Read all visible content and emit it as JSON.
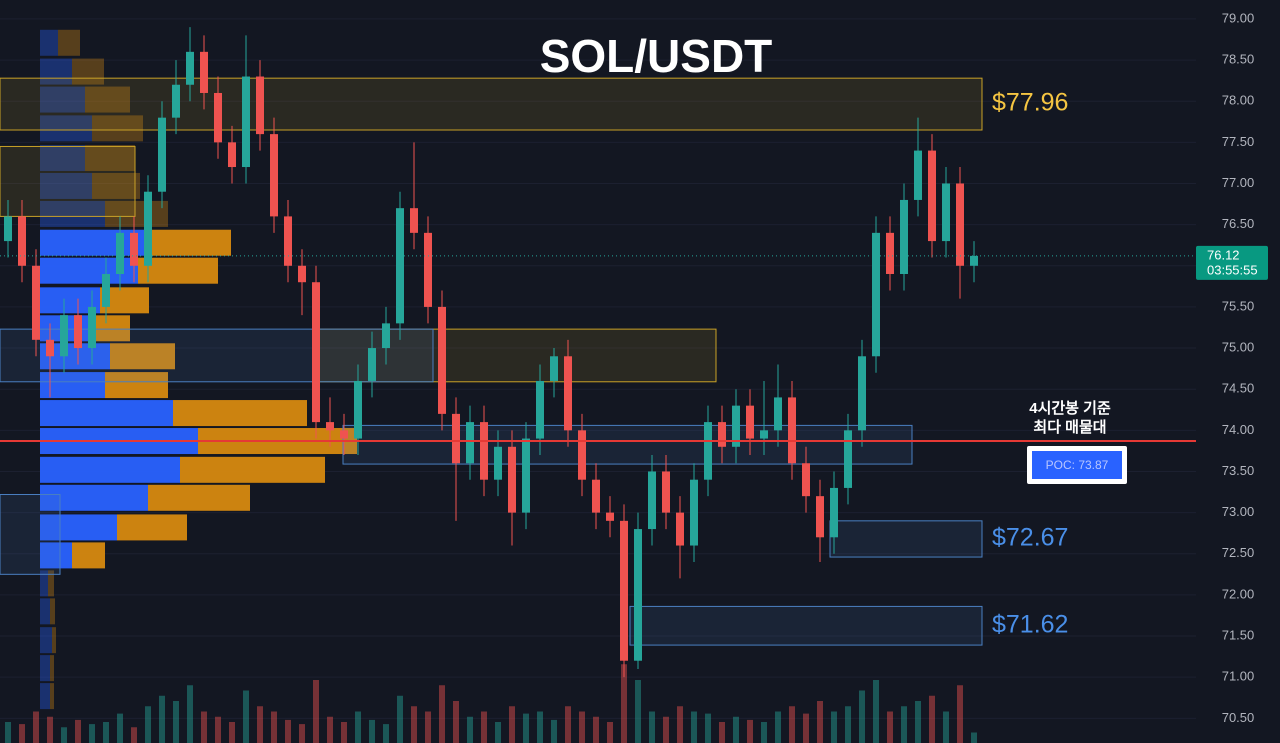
{
  "chart_data": {
    "type": "candlestick",
    "title": "SOL/USDT",
    "ylim": [
      70.2,
      79.23
    ],
    "yticks": [
      {
        "value": 70.5,
        "label": "70.50"
      },
      {
        "value": 71,
        "label": "71.00"
      },
      {
        "value": 71.5,
        "label": "71.50"
      },
      {
        "value": 72,
        "label": "72.00"
      },
      {
        "value": 72.5,
        "label": "72.50"
      },
      {
        "value": 73,
        "label": "73.00"
      },
      {
        "value": 73.5,
        "label": "73.50"
      },
      {
        "value": 74,
        "label": "74.00"
      },
      {
        "value": 74.5,
        "label": "74.50"
      },
      {
        "value": 75,
        "label": "75.00"
      },
      {
        "value": 75.5,
        "label": "75.50"
      },
      {
        "value": 76,
        "label": "76.00"
      },
      {
        "value": 76.5,
        "label": "76.50"
      },
      {
        "value": 77,
        "label": "77.00"
      },
      {
        "value": 77.5,
        "label": "77.50"
      },
      {
        "value": 78,
        "label": "78.00"
      },
      {
        "value": 78.5,
        "label": "78.50"
      },
      {
        "value": 79,
        "label": "79.00"
      }
    ],
    "grid": true,
    "up_color": "#26a69a",
    "down_color": "#ef5350",
    "open": [
      76.3,
      76.6,
      76.0,
      75.1,
      74.9,
      75.4,
      75.0,
      75.5,
      75.9,
      76.4,
      76.0,
      76.9,
      77.8,
      78.2,
      78.6,
      78.1,
      77.5,
      77.2,
      78.3,
      77.6,
      76.6,
      76.0,
      75.8,
      74.1,
      74.0,
      73.9,
      74.6,
      75.0,
      75.3,
      76.7,
      76.4,
      75.5,
      74.2,
      73.6,
      74.1,
      73.4,
      73.8,
      73.0,
      73.9,
      74.6,
      74.9,
      74.0,
      73.4,
      73.0,
      72.9,
      71.2,
      72.8,
      73.5,
      73.0,
      72.6,
      73.4,
      74.1,
      73.8,
      74.3,
      73.9,
      74.0,
      74.4,
      73.6,
      73.2,
      72.7,
      73.3,
      74.0,
      74.9,
      76.4,
      75.9,
      76.8,
      77.4,
      76.3,
      77.0,
      76.0
    ],
    "high": [
      76.8,
      76.8,
      76.2,
      75.3,
      75.6,
      75.6,
      75.7,
      76.1,
      76.6,
      76.6,
      77.1,
      78.0,
      78.5,
      78.9,
      78.8,
      78.3,
      77.7,
      78.8,
      78.5,
      77.8,
      76.8,
      76.2,
      76.0,
      74.4,
      74.2,
      74.8,
      75.2,
      75.5,
      76.9,
      77.5,
      76.6,
      75.7,
      74.4,
      74.3,
      74.3,
      74.0,
      74.0,
      74.1,
      74.8,
      75.0,
      75.1,
      74.2,
      73.6,
      73.2,
      73.1,
      73.0,
      73.7,
      73.7,
      73.2,
      73.6,
      74.3,
      74.3,
      74.5,
      74.5,
      74.6,
      74.8,
      74.6,
      73.8,
      73.4,
      73.5,
      74.2,
      75.1,
      76.6,
      76.6,
      77.0,
      77.8,
      77.6,
      77.2,
      77.2,
      76.3
    ],
    "low": [
      76.1,
      75.8,
      74.9,
      74.4,
      74.7,
      74.8,
      74.8,
      75.3,
      75.7,
      75.8,
      75.8,
      76.7,
      77.6,
      78.0,
      77.9,
      77.3,
      77.0,
      77.0,
      77.4,
      76.4,
      75.8,
      75.4,
      73.9,
      73.8,
      73.7,
      73.7,
      74.4,
      74.8,
      75.1,
      76.2,
      75.3,
      74.0,
      72.9,
      73.4,
      73.2,
      73.2,
      72.6,
      72.8,
      73.7,
      74.4,
      73.8,
      73.2,
      72.8,
      72.7,
      71.0,
      71.1,
      72.6,
      72.8,
      72.2,
      72.4,
      73.2,
      73.6,
      73.6,
      73.7,
      73.7,
      73.8,
      73.4,
      73.0,
      72.4,
      72.5,
      73.1,
      73.8,
      74.7,
      75.7,
      75.7,
      76.6,
      76.1,
      76.1,
      75.6,
      75.8
    ],
    "close": [
      76.6,
      76.0,
      75.1,
      74.9,
      75.4,
      75.0,
      75.5,
      75.9,
      76.4,
      76.0,
      76.9,
      77.8,
      78.2,
      78.6,
      78.1,
      77.5,
      77.2,
      78.3,
      77.6,
      76.6,
      76.0,
      75.8,
      74.1,
      74.0,
      73.9,
      74.6,
      75.0,
      75.3,
      76.7,
      76.4,
      75.5,
      74.2,
      73.6,
      74.1,
      73.4,
      73.8,
      73.0,
      73.9,
      74.6,
      74.9,
      74.0,
      73.4,
      73.0,
      72.9,
      71.2,
      72.8,
      73.5,
      73.0,
      72.6,
      73.4,
      74.1,
      73.8,
      74.3,
      73.9,
      74.0,
      74.4,
      73.6,
      73.2,
      72.7,
      73.3,
      74.0,
      74.9,
      76.4,
      75.9,
      76.8,
      77.4,
      76.3,
      77.0,
      76.0,
      76.12
    ],
    "volume": [
      20,
      18,
      30,
      25,
      15,
      22,
      18,
      20,
      28,
      15,
      35,
      45,
      40,
      55,
      30,
      25,
      20,
      50,
      35,
      30,
      22,
      18,
      60,
      25,
      20,
      30,
      22,
      18,
      45,
      35,
      30,
      55,
      40,
      25,
      30,
      20,
      35,
      28,
      30,
      22,
      35,
      30,
      25,
      20,
      75,
      60,
      30,
      25,
      35,
      30,
      28,
      20,
      25,
      22,
      20,
      30,
      35,
      28,
      40,
      30,
      35,
      50,
      60,
      30,
      35,
      40,
      45,
      30,
      55,
      10
    ],
    "profile": {
      "prices": [
        78.71,
        78.36,
        78.02,
        77.67,
        77.31,
        76.97,
        76.63,
        76.28,
        75.94,
        75.58,
        75.24,
        74.9,
        74.55,
        74.21,
        73.87,
        73.52,
        73.18,
        72.82,
        72.48,
        72.14,
        71.8,
        71.45,
        71.11,
        70.77
      ],
      "buy": [
        18,
        32,
        45,
        52,
        45,
        52,
        65,
        110,
        98,
        60,
        55,
        70,
        65,
        133,
        158,
        140,
        108,
        77,
        32,
        8,
        10,
        12,
        10,
        10
      ],
      "sell": [
        22,
        32,
        45,
        51,
        50,
        48,
        63,
        81,
        80,
        49,
        35,
        65,
        63,
        134,
        159,
        145,
        102,
        70,
        33,
        6,
        5,
        4,
        4,
        4
      ],
      "value_area": [
        72.3,
        76.45
      ],
      "buy_color": "#2962ff",
      "sell_color": "#d68910"
    },
    "zones": [
      {
        "low": 77.65,
        "high": 78.28,
        "color": "#c9a227",
        "label": "$77.96",
        "label_color": "#f5c542"
      },
      {
        "low": 72.46,
        "high": 72.9,
        "color": "#4a7fc1",
        "label": "$72.67",
        "label_color": "#4a8fe8"
      },
      {
        "low": 71.39,
        "high": 71.86,
        "color": "#4a7fc1",
        "label": "$71.62",
        "label_color": "#4a8fe8"
      },
      {
        "low": 74.59,
        "high": 75.23,
        "color": "#c9a227"
      },
      {
        "low": 73.59,
        "high": 74.06,
        "color": "#4a7fc1"
      },
      {
        "low": 76.6,
        "high": 77.45,
        "color": "#c9a227"
      },
      {
        "low": 74.59,
        "high": 75.23,
        "color": "#4a7fc1"
      },
      {
        "low": 72.25,
        "high": 73.22,
        "color": "#4a7fc1"
      }
    ],
    "poc": {
      "value": 73.87,
      "label": "POC: 73.87",
      "color": "#e53935"
    },
    "annotation": [
      "4시간봉 기준",
      "최다 매물대"
    ],
    "last_price": 76.12,
    "countdown": "03:55:55"
  }
}
